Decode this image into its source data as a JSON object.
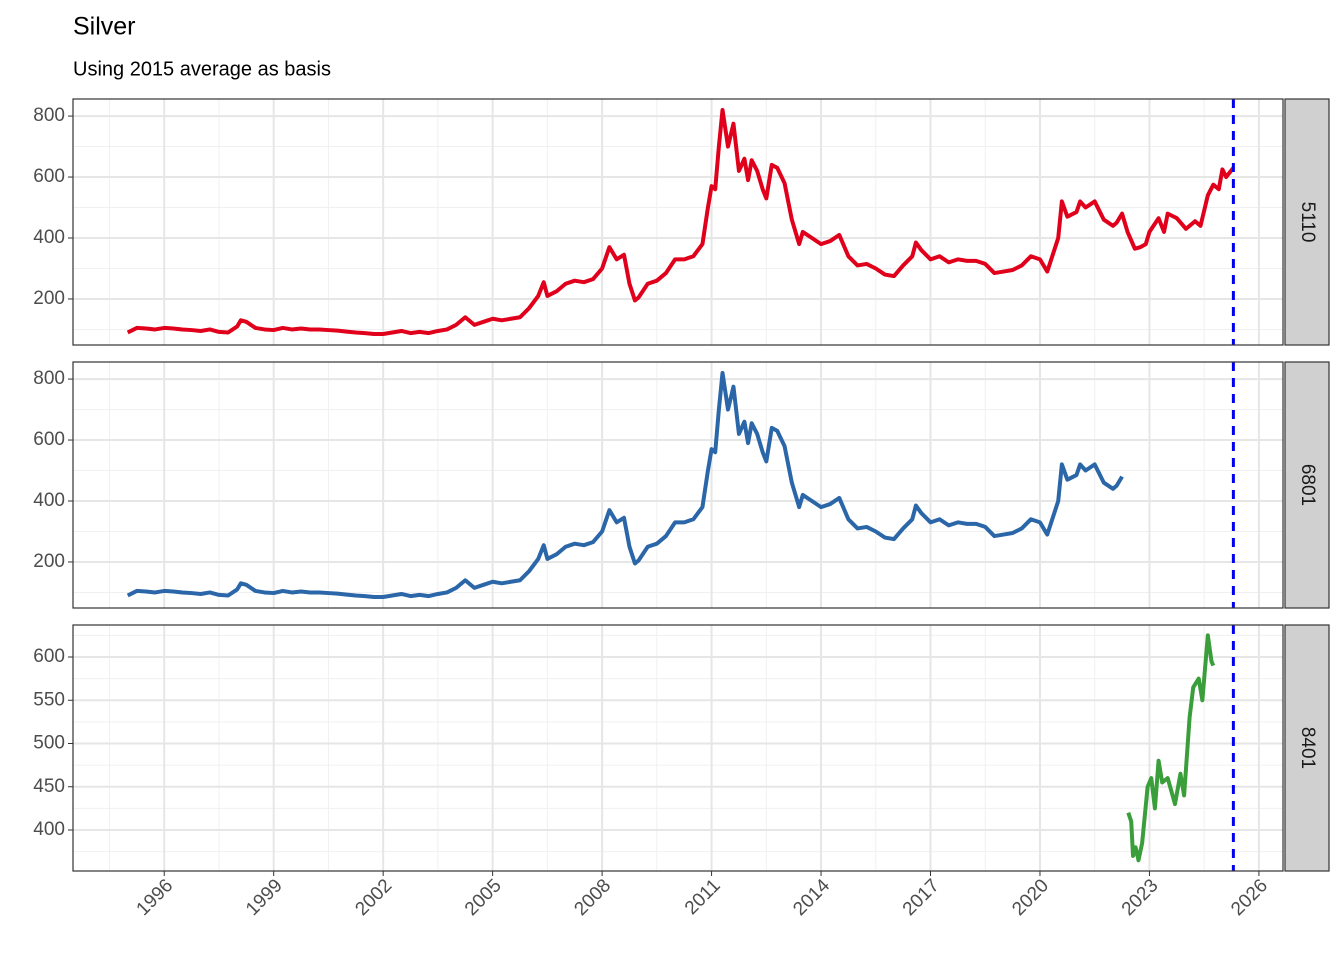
{
  "title": "Silver",
  "subtitle": "Using 2015 average as basis",
  "chart_data": [
    {
      "type": "line",
      "strip": "5110",
      "color": "#e0001b",
      "vline": 2025.3,
      "vline_color": "#0000ee",
      "xlim": [
        1993.5,
        2026.66
      ],
      "xticks": [
        1996,
        1999,
        2002,
        2005,
        2008,
        2011,
        2014,
        2017,
        2020,
        2023,
        2026
      ],
      "ylim": [
        49,
        856
      ],
      "yticks": [
        200,
        400,
        600,
        800
      ],
      "grid": true,
      "x": [
        1995.0,
        1995.25,
        1995.5,
        1995.75,
        1996.0,
        1996.25,
        1996.5,
        1996.75,
        1997.0,
        1997.25,
        1997.5,
        1997.75,
        1998.0,
        1998.1,
        1998.25,
        1998.5,
        1998.75,
        1999.0,
        1999.25,
        1999.5,
        1999.75,
        2000.0,
        2000.25,
        2000.5,
        2000.75,
        2001.0,
        2001.25,
        2001.5,
        2001.75,
        2002.0,
        2002.25,
        2002.5,
        2002.75,
        2003.0,
        2003.25,
        2003.5,
        2003.75,
        2004.0,
        2004.25,
        2004.5,
        2004.75,
        2005.0,
        2005.25,
        2005.5,
        2005.75,
        2006.0,
        2006.25,
        2006.4,
        2006.5,
        2006.75,
        2007.0,
        2007.25,
        2007.5,
        2007.75,
        2008.0,
        2008.2,
        2008.4,
        2008.6,
        2008.75,
        2008.9,
        2009.0,
        2009.25,
        2009.5,
        2009.75,
        2010.0,
        2010.25,
        2010.5,
        2010.75,
        2010.9,
        2011.0,
        2011.1,
        2011.2,
        2011.3,
        2011.45,
        2011.6,
        2011.75,
        2011.9,
        2012.0,
        2012.1,
        2012.25,
        2012.4,
        2012.5,
        2012.65,
        2012.8,
        2013.0,
        2013.2,
        2013.4,
        2013.5,
        2013.75,
        2014.0,
        2014.25,
        2014.5,
        2014.75,
        2015.0,
        2015.25,
        2015.5,
        2015.75,
        2016.0,
        2016.25,
        2016.5,
        2016.6,
        2016.75,
        2017.0,
        2017.25,
        2017.5,
        2017.75,
        2018.0,
        2018.25,
        2018.5,
        2018.75,
        2019.0,
        2019.25,
        2019.5,
        2019.75,
        2020.0,
        2020.2,
        2020.5,
        2020.6,
        2020.75,
        2021.0,
        2021.1,
        2021.25,
        2021.5,
        2021.75,
        2022.0,
        2022.1,
        2022.25,
        2022.4,
        2022.6,
        2022.75,
        2022.9,
        2023.0,
        2023.25,
        2023.4,
        2023.5,
        2023.75,
        2024.0,
        2024.25,
        2024.4,
        2024.6,
        2024.75,
        2024.9,
        2025.0,
        2025.1,
        2025.3
      ],
      "values": [
        90,
        105,
        103,
        100,
        105,
        103,
        100,
        98,
        95,
        100,
        92,
        90,
        110,
        130,
        125,
        105,
        100,
        98,
        105,
        100,
        103,
        100,
        100,
        98,
        96,
        93,
        90,
        88,
        85,
        85,
        90,
        95,
        88,
        92,
        88,
        95,
        100,
        115,
        140,
        115,
        125,
        135,
        130,
        135,
        140,
        170,
        210,
        255,
        210,
        225,
        250,
        260,
        255,
        265,
        300,
        370,
        330,
        345,
        250,
        195,
        205,
        250,
        260,
        285,
        330,
        330,
        340,
        380,
        500,
        570,
        560,
        700,
        820,
        700,
        775,
        620,
        660,
        590,
        655,
        620,
        560,
        530,
        640,
        630,
        580,
        460,
        380,
        420,
        400,
        380,
        390,
        410,
        340,
        310,
        315,
        300,
        280,
        275,
        310,
        340,
        385,
        360,
        330,
        340,
        320,
        330,
        325,
        325,
        315,
        285,
        290,
        295,
        310,
        340,
        330,
        290,
        400,
        520,
        470,
        485,
        520,
        500,
        520,
        460,
        440,
        450,
        480,
        420,
        365,
        370,
        380,
        420,
        465,
        420,
        480,
        465,
        430,
        455,
        440,
        540,
        575,
        560,
        625,
        600,
        630
      ]
    },
    {
      "type": "line",
      "strip": "6801",
      "color": "#2b66a8",
      "vline": 2025.3,
      "vline_color": "#0000ee",
      "xlim": [
        1993.5,
        2026.66
      ],
      "xticks": [
        1996,
        1999,
        2002,
        2005,
        2008,
        2011,
        2014,
        2017,
        2020,
        2023,
        2026
      ],
      "ylim": [
        49,
        856
      ],
      "yticks": [
        200,
        400,
        600,
        800
      ],
      "grid": true,
      "x": [
        1995.0,
        1995.25,
        1995.5,
        1995.75,
        1996.0,
        1996.25,
        1996.5,
        1996.75,
        1997.0,
        1997.25,
        1997.5,
        1997.75,
        1998.0,
        1998.1,
        1998.25,
        1998.5,
        1998.75,
        1999.0,
        1999.25,
        1999.5,
        1999.75,
        2000.0,
        2000.25,
        2000.5,
        2000.75,
        2001.0,
        2001.25,
        2001.5,
        2001.75,
        2002.0,
        2002.25,
        2002.5,
        2002.75,
        2003.0,
        2003.25,
        2003.5,
        2003.75,
        2004.0,
        2004.25,
        2004.5,
        2004.75,
        2005.0,
        2005.25,
        2005.5,
        2005.75,
        2006.0,
        2006.25,
        2006.4,
        2006.5,
        2006.75,
        2007.0,
        2007.25,
        2007.5,
        2007.75,
        2008.0,
        2008.2,
        2008.4,
        2008.6,
        2008.75,
        2008.9,
        2009.0,
        2009.25,
        2009.5,
        2009.75,
        2010.0,
        2010.25,
        2010.5,
        2010.75,
        2010.9,
        2011.0,
        2011.1,
        2011.2,
        2011.3,
        2011.45,
        2011.6,
        2011.75,
        2011.9,
        2012.0,
        2012.1,
        2012.25,
        2012.4,
        2012.5,
        2012.65,
        2012.8,
        2013.0,
        2013.2,
        2013.4,
        2013.5,
        2013.75,
        2014.0,
        2014.25,
        2014.5,
        2014.75,
        2015.0,
        2015.25,
        2015.5,
        2015.75,
        2016.0,
        2016.25,
        2016.5,
        2016.6,
        2016.75,
        2017.0,
        2017.25,
        2017.5,
        2017.75,
        2018.0,
        2018.25,
        2018.5,
        2018.75,
        2019.0,
        2019.25,
        2019.5,
        2019.75,
        2020.0,
        2020.2,
        2020.5,
        2020.6,
        2020.75,
        2021.0,
        2021.1,
        2021.25,
        2021.5,
        2021.75,
        2022.0,
        2022.1,
        2022.25
      ],
      "values": [
        90,
        105,
        103,
        100,
        105,
        103,
        100,
        98,
        95,
        100,
        92,
        90,
        110,
        130,
        125,
        105,
        100,
        98,
        105,
        100,
        103,
        100,
        100,
        98,
        96,
        93,
        90,
        88,
        85,
        85,
        90,
        95,
        88,
        92,
        88,
        95,
        100,
        115,
        140,
        115,
        125,
        135,
        130,
        135,
        140,
        170,
        210,
        255,
        210,
        225,
        250,
        260,
        255,
        265,
        300,
        370,
        330,
        345,
        250,
        195,
        205,
        250,
        260,
        285,
        330,
        330,
        340,
        380,
        500,
        570,
        560,
        700,
        820,
        700,
        775,
        620,
        660,
        590,
        655,
        620,
        560,
        530,
        640,
        630,
        580,
        460,
        380,
        420,
        400,
        380,
        390,
        410,
        340,
        310,
        315,
        300,
        280,
        275,
        310,
        340,
        385,
        360,
        330,
        340,
        320,
        330,
        325,
        325,
        315,
        285,
        290,
        295,
        310,
        340,
        330,
        290,
        400,
        520,
        470,
        485,
        520,
        500,
        520,
        460,
        440,
        450,
        480
      ]
    },
    {
      "type": "line",
      "strip": "8401",
      "color": "#3a9e3a",
      "vline": 2025.3,
      "vline_color": "#0000ee",
      "xlim": [
        1993.5,
        2026.66
      ],
      "xticks": [
        1996,
        1999,
        2002,
        2005,
        2008,
        2011,
        2014,
        2017,
        2020,
        2023,
        2026
      ],
      "ylim": [
        352.6,
        637
      ],
      "yticks": [
        400,
        450,
        500,
        550,
        600
      ],
      "grid": true,
      "x": [
        2022.42,
        2022.5,
        2022.55,
        2022.62,
        2022.7,
        2022.8,
        2022.95,
        2023.05,
        2023.15,
        2023.25,
        2023.35,
        2023.5,
        2023.6,
        2023.7,
        2023.85,
        2023.95,
        2024.1,
        2024.2,
        2024.35,
        2024.45,
        2024.6,
        2024.7,
        2024.75
      ],
      "values": [
        420,
        410,
        370,
        380,
        365,
        385,
        450,
        460,
        425,
        480,
        455,
        460,
        445,
        430,
        465,
        440,
        530,
        565,
        575,
        550,
        625,
        595,
        590
      ]
    }
  ]
}
